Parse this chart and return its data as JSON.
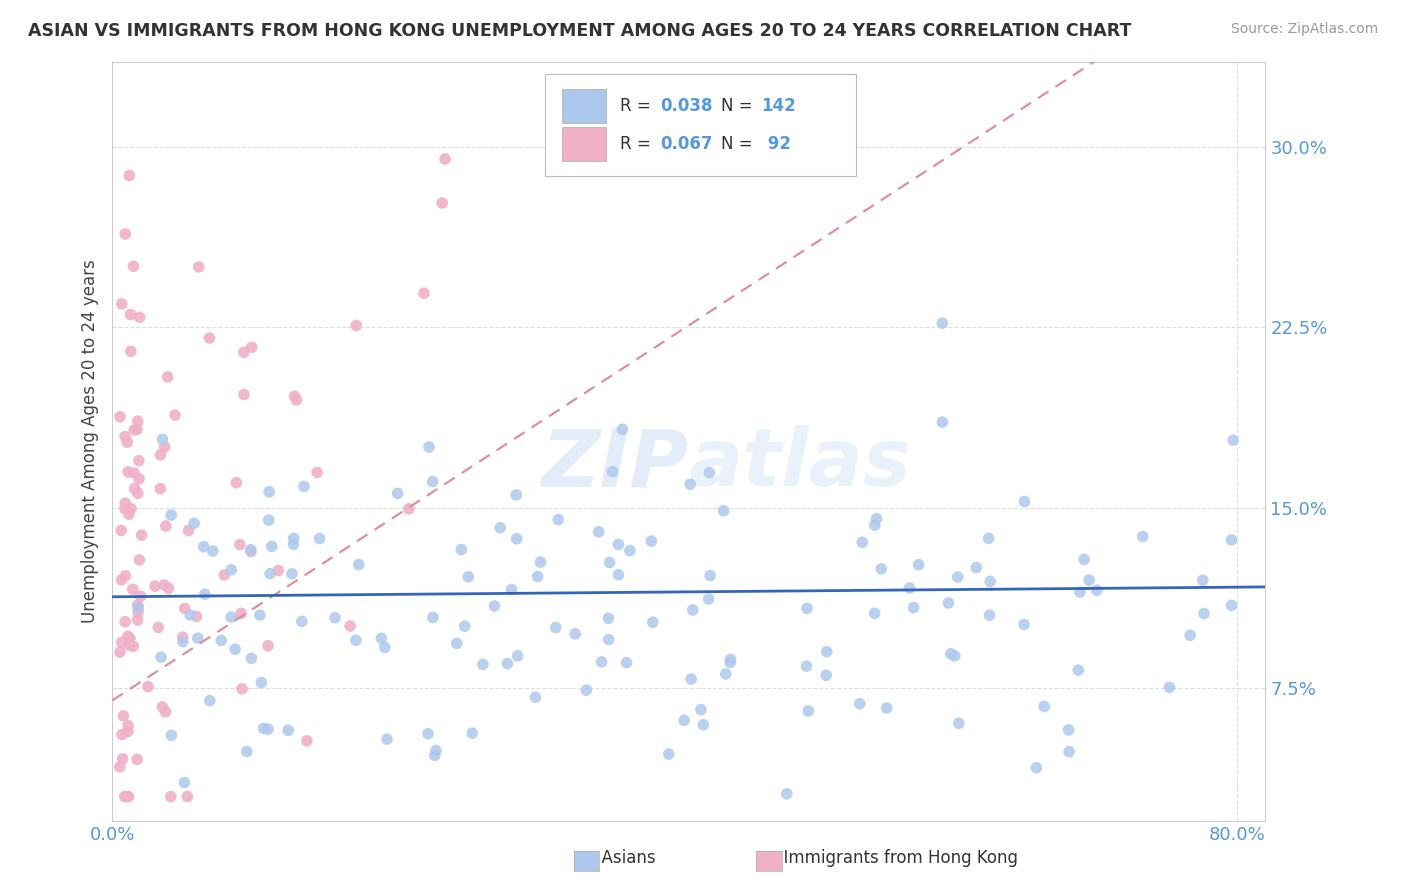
{
  "title": "ASIAN VS IMMIGRANTS FROM HONG KONG UNEMPLOYMENT AMONG AGES 20 TO 24 YEARS CORRELATION CHART",
  "source": "Source: ZipAtlas.com",
  "ylabel": "Unemployment Among Ages 20 to 24 years",
  "ytick_vals": [
    0.075,
    0.15,
    0.225,
    0.3
  ],
  "ytick_labels": [
    "7.5%",
    "15.0%",
    "22.5%",
    "30.0%"
  ],
  "xlim": [
    0.0,
    0.82
  ],
  "ylim": [
    0.02,
    0.335
  ],
  "asian_color": "#adc8ed",
  "hk_color": "#f0b0c8",
  "trend_asian_color": "#3366bb",
  "trend_hk_color": "#e08898",
  "watermark": "ZIPatlas",
  "legend_box_color": "#f5f5f5",
  "grid_color": "#dddddd",
  "tick_color": "#5599dd"
}
